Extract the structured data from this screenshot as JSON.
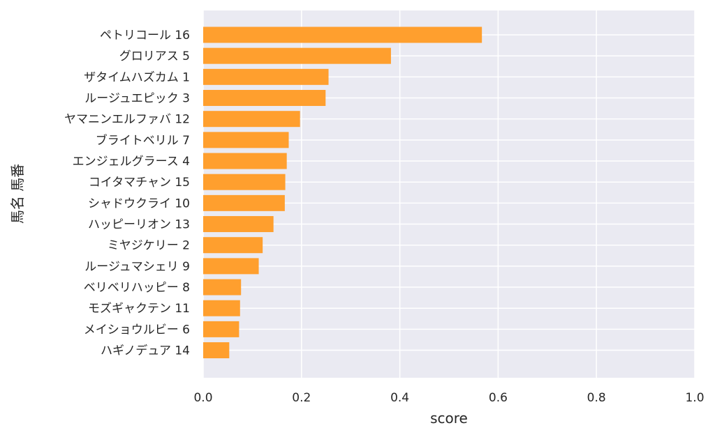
{
  "chart_data": {
    "type": "bar",
    "orientation": "horizontal",
    "xlabel": "score",
    "ylabel": "馬名 馬番",
    "xlim": [
      0.0,
      1.0
    ],
    "xticks": [
      "0.0",
      "0.2",
      "0.4",
      "0.6",
      "0.8",
      "1.0"
    ],
    "grid": true,
    "bar_color": "#ff9f2e",
    "plot_background": "#eaeaf2",
    "categories": [
      "ペトリコール 16",
      "グロリアス 5",
      "ザタイムハズカム 1",
      "ルージュエピック 3",
      "ヤマニンエルファバ 12",
      "ブライトベリル 7",
      "エンジェルグラース 4",
      "コイタマチャン 15",
      "シャドウクライ 10",
      "ハッピーリオン 13",
      "ミヤジケリー 2",
      "ルージュマシェリ 9",
      "ベリベリハッピー 8",
      "モズギャクテン 11",
      "メイショウルビー 6",
      "ハギノデュア 14"
    ],
    "values": [
      0.567,
      0.382,
      0.255,
      0.249,
      0.197,
      0.174,
      0.17,
      0.167,
      0.166,
      0.143,
      0.121,
      0.113,
      0.077,
      0.075,
      0.073,
      0.053
    ]
  }
}
